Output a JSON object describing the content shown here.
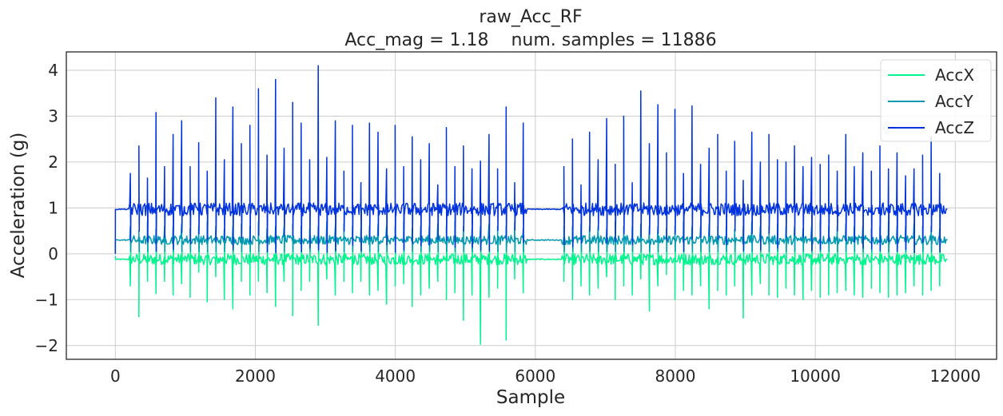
{
  "chart_data": {
    "type": "line",
    "title": "raw_Acc_RF",
    "subtitle": "Acc_mag = 1.18    num. samples = 11886",
    "xlabel": "Sample",
    "ylabel": "Acceleration (g)",
    "xlim": [
      -700,
      12590
    ],
    "ylim": [
      -2.3,
      4.4
    ],
    "xticks": [
      0,
      2000,
      4000,
      6000,
      8000,
      10000,
      12000
    ],
    "xtick_labels": [
      "0",
      "2000",
      "4000",
      "6000",
      "8000",
      "10000",
      "12000"
    ],
    "yticks": [
      -2,
      -1,
      0,
      1,
      2,
      3,
      4
    ],
    "ytick_labels": [
      "−2",
      "−1",
      "0",
      "1",
      "2",
      "3",
      "4"
    ],
    "grid": true,
    "legend_position": "top-right",
    "num_samples": 11886,
    "quiet_ranges": [
      [
        0,
        200
      ],
      [
        5880,
        6380
      ],
      [
        11860,
        11886
      ]
    ],
    "series": [
      {
        "name": "AccX",
        "color": "#00f58c",
        "baseline": -0.12,
        "spike_values": [
          -0.7,
          -1.37,
          -0.6,
          -0.87,
          -0.6,
          -0.9,
          -0.65,
          -0.95,
          -0.4,
          -1.05,
          -0.5,
          -1.0,
          -1.2,
          -0.6,
          -0.9,
          -0.6,
          -0.85,
          -1.15,
          -0.6,
          -1.35,
          -0.8,
          -0.6,
          -1.56,
          -0.55,
          -0.9,
          -0.6,
          -0.85,
          -0.6,
          -0.9,
          -0.8,
          -1.1,
          -0.7,
          -0.65,
          -1.15,
          -0.9,
          -0.75,
          -0.6,
          -1.0,
          -0.85,
          -1.45,
          -0.9,
          -1.97,
          -0.95,
          -0.75,
          -1.88,
          -0.55,
          -0.85,
          -0.6,
          -1.0,
          -0.7,
          -0.9,
          -0.75,
          -0.5,
          -1.0,
          -0.7,
          -0.9,
          -0.55,
          -1.25,
          -0.7,
          -0.45,
          -1.0,
          -0.8,
          -0.9,
          -0.7,
          -1.2,
          -0.8,
          -0.9,
          -0.7,
          -1.4,
          -0.9,
          -0.65,
          -0.9,
          -0.95,
          -0.75,
          -0.9,
          -1.0,
          -0.8,
          -0.95,
          -0.9,
          -0.85,
          -0.8,
          -0.9,
          -0.95,
          -0.75,
          -0.85,
          -0.95,
          -0.9,
          -0.85,
          -0.7,
          -0.9,
          -0.8,
          -0.7,
          -0.6,
          -0.85
        ]
      },
      {
        "name": "AccY",
        "color": "#0099b0",
        "baseline": 0.3,
        "spike_values": [
          0.6,
          0.5,
          0.7,
          0.55,
          0.6,
          0.6,
          0.65,
          0.55,
          0.6,
          0.7,
          0.6,
          0.55,
          0.6,
          0.65,
          0.6,
          0.7,
          0.55,
          0.6,
          0.6,
          0.65,
          0.6,
          0.55,
          0.6,
          0.7,
          0.6,
          0.65,
          0.6,
          0.55,
          0.6,
          0.65,
          0.6,
          0.6,
          0.7,
          0.55,
          0.6,
          0.6,
          0.65,
          0.6,
          0.7,
          0.6,
          0.55,
          0.6,
          0.65,
          0.6,
          0.6,
          0.7,
          0.55,
          0.6,
          0.6,
          0.65,
          0.6,
          0.6,
          0.55,
          0.7,
          0.6,
          0.6,
          0.65,
          0.6,
          0.6,
          0.55,
          0.6,
          0.7,
          0.6,
          0.6,
          0.65,
          0.6,
          0.6,
          0.55,
          0.6,
          0.7,
          0.6,
          0.6,
          0.65,
          0.6,
          0.6,
          0.55,
          0.6,
          0.7,
          0.6,
          0.6,
          0.65,
          0.6,
          0.6,
          0.55,
          0.6,
          0.7,
          0.6,
          0.6,
          0.65,
          0.6,
          0.6,
          0.55,
          0.6,
          0.65
        ]
      },
      {
        "name": "AccZ",
        "color": "#0033dd",
        "baseline": 0.97,
        "spike_values": [
          1.75,
          2.35,
          1.65,
          3.08,
          1.9,
          2.6,
          2.9,
          1.9,
          2.42,
          1.8,
          3.4,
          2.05,
          3.2,
          2.4,
          2.8,
          3.6,
          2.15,
          3.8,
          2.3,
          3.3,
          2.85,
          2.05,
          4.1,
          2.1,
          2.9,
          1.8,
          2.8,
          1.55,
          2.85,
          2.65,
          1.85,
          2.8,
          1.9,
          2.55,
          2.05,
          2.4,
          1.5,
          2.75,
          1.9,
          2.35,
          1.85,
          2.02,
          2.6,
          1.85,
          3.2,
          1.55,
          2.85,
          1.9,
          2.5,
          1.5,
          2.65,
          2.05,
          2.95,
          1.95,
          3.0,
          1.55,
          3.55,
          2.4,
          3.25,
          2.2,
          3.15,
          1.75,
          3.22,
          1.95,
          2.3,
          2.6,
          1.8,
          2.45,
          1.6,
          2.65,
          2.0,
          2.6,
          2.05,
          2.0,
          2.35,
          1.9,
          2.1,
          1.95,
          2.15,
          1.8,
          2.6,
          1.9,
          2.2,
          1.8,
          2.35,
          1.85,
          2.2,
          1.7,
          1.85,
          2.15,
          2.55,
          1.75,
          1.9,
          1.5
        ]
      }
    ]
  }
}
